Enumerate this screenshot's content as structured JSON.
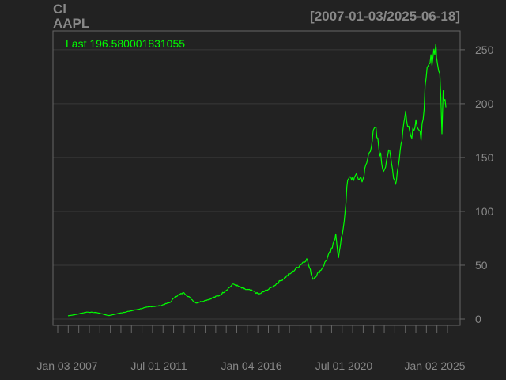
{
  "header": {
    "left_line1": "Cl",
    "left_line2": "AAPL",
    "date_range": "[2007-01-03/2025-06-18]"
  },
  "last_label": "Last 196.580001831055",
  "colors": {
    "background": "#222222",
    "panel_border": "#666666",
    "grid": "#3a3a3a",
    "series": "#00ff00",
    "axis_text": "#888888"
  },
  "chart_data": {
    "type": "line",
    "title": "",
    "xlabel": "",
    "ylabel": "",
    "ylim": [
      0,
      265
    ],
    "grid": true,
    "y_ticks": [
      0,
      50,
      100,
      150,
      200,
      250
    ],
    "x_tick_labels": [
      "Jan 03 2007",
      "Jul 01 2011",
      "Jan 04 2016",
      "Jul 01 2020",
      "Jan 02 2025"
    ],
    "series": [
      {
        "name": "AAPL",
        "points": [
          [
            "2007-01-03",
            3.0
          ],
          [
            "2007-06-01",
            4.3
          ],
          [
            "2007-12-01",
            6.5
          ],
          [
            "2008-06-01",
            6.0
          ],
          [
            "2009-01-01",
            3.2
          ],
          [
            "2009-06-01",
            5.0
          ],
          [
            "2010-01-01",
            7.3
          ],
          [
            "2010-06-01",
            9.0
          ],
          [
            "2011-01-01",
            11.5
          ],
          [
            "2011-07-01",
            12.3
          ],
          [
            "2012-01-01",
            15.5
          ],
          [
            "2012-04-01",
            21.0
          ],
          [
            "2012-09-01",
            24.5
          ],
          [
            "2013-04-01",
            15.0
          ],
          [
            "2013-09-01",
            17.0
          ],
          [
            "2014-06-01",
            22.0
          ],
          [
            "2015-02-01",
            32.5
          ],
          [
            "2015-08-01",
            28.0
          ],
          [
            "2016-01-04",
            26.3
          ],
          [
            "2016-05-01",
            23.0
          ],
          [
            "2016-12-01",
            29.0
          ],
          [
            "2017-06-01",
            36.0
          ],
          [
            "2017-12-01",
            43.0
          ],
          [
            "2018-09-01",
            56.0
          ],
          [
            "2018-12-20",
            37.0
          ],
          [
            "2019-06-01",
            47.0
          ],
          [
            "2019-12-01",
            66.0
          ],
          [
            "2020-02-01",
            79.0
          ],
          [
            "2020-03-20",
            57.0
          ],
          [
            "2020-07-01",
            91.0
          ],
          [
            "2020-09-01",
            129.0
          ],
          [
            "2021-01-01",
            132.0
          ],
          [
            "2021-06-01",
            130.0
          ],
          [
            "2022-01-01",
            178.0
          ],
          [
            "2022-06-01",
            137.0
          ],
          [
            "2022-09-01",
            157.0
          ],
          [
            "2023-01-01",
            125.0
          ],
          [
            "2023-07-01",
            193.0
          ],
          [
            "2023-10-01",
            170.0
          ],
          [
            "2024-01-01",
            185.0
          ],
          [
            "2024-04-01",
            166.0
          ],
          [
            "2024-07-01",
            224.0
          ],
          [
            "2024-12-20",
            255.0
          ],
          [
            "2025-01-01",
            243.0
          ],
          [
            "2025-03-01",
            228.0
          ],
          [
            "2025-04-08",
            172.0
          ],
          [
            "2025-05-01",
            212.0
          ],
          [
            "2025-06-18",
            196.58
          ]
        ]
      }
    ]
  }
}
